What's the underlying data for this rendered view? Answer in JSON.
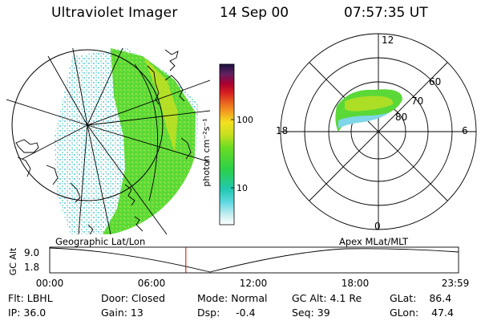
{
  "header": {
    "title": "Ultraviolet Imager",
    "date": "14 Sep 00",
    "time": "07:57:35 UT"
  },
  "colorbar": {
    "unit_label": "photon cm⁻²s⁻¹",
    "tick_high": "100",
    "tick_low": "10"
  },
  "polar_plot": {
    "mlt_top": "12",
    "mlt_left": "18",
    "mlt_right": "6",
    "mlt_bottom": "0",
    "lat_60": "60",
    "lat_70": "70",
    "lat_80": "80"
  },
  "timeline": {
    "left_title": "Geographic Lat/Lon",
    "right_title": "Apex  MLat/MLT",
    "axis_label": "GC Alt",
    "y_high": "9.0",
    "y_low": "1.8",
    "x_ticks": [
      "00:00",
      "06:00",
      "12:00",
      "18:00",
      "23:59"
    ],
    "marker_fraction_of_day": 0.333,
    "marker_color": "#cc0000"
  },
  "stats": {
    "filter": "Flt: LBHL",
    "ip": "IP: 36.0",
    "door": "Door: Closed",
    "gain": "Gain: 13",
    "mode": "Mode: Normal",
    "dsp": "Dsp:     -0.4",
    "gc_alt": "GC Alt: 4.1 Re",
    "seq": "Seq: 39",
    "glat": "GLat:    86.4",
    "glon": "GLon:    47.4"
  },
  "colors": {
    "aurora_green": "#44dd22",
    "aurora_yellow": "#c8e020",
    "aurora_cyan": "#44d8c8",
    "speckle_blue": "#7fd6e8"
  }
}
